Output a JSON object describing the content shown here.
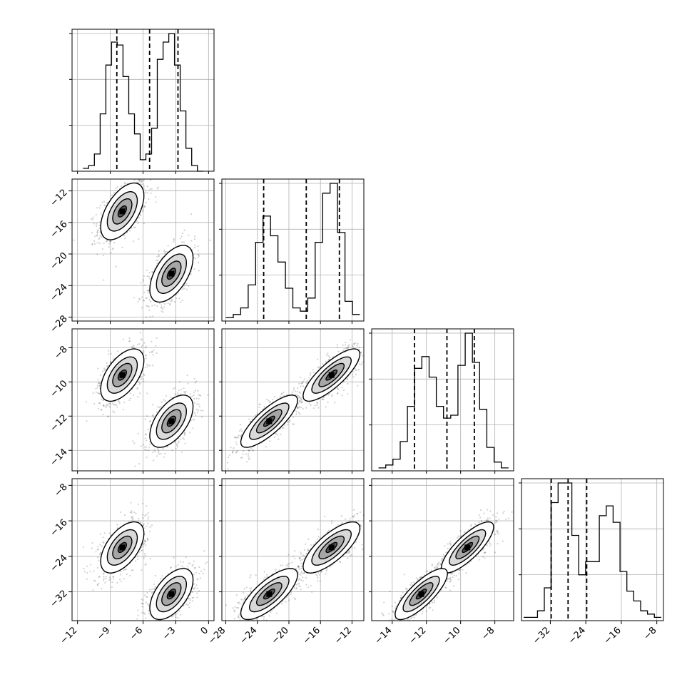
{
  "chart_data": {
    "type": "corner",
    "title": "",
    "params": [
      {
        "label": "",
        "range": [
          -12.5,
          0.5
        ],
        "ticks": [
          -12,
          -9,
          -6,
          -3,
          0
        ],
        "tick_labels": [
          "−12",
          "−9",
          "−6",
          "−3",
          "0"
        ]
      },
      {
        "label": "",
        "range": [
          -28.5,
          -10.5
        ],
        "ticks": [
          -28,
          -24,
          -20,
          -16,
          -12
        ],
        "tick_labels": [
          "−28",
          "−24",
          "−20",
          "−16",
          "−12"
        ]
      },
      {
        "label": "",
        "range": [
          -15.2,
          -6.9
        ],
        "ticks": [
          -14,
          -12,
          -10,
          -8
        ],
        "tick_labels": [
          "−14",
          "−12",
          "−10",
          "−8"
        ]
      },
      {
        "label": "",
        "range": [
          -38.5,
          -6.5
        ],
        "ticks": [
          -32,
          -24,
          -16,
          -8
        ],
        "tick_labels": [
          "−32",
          "−24",
          "−16",
          "−8"
        ]
      }
    ],
    "quantiles": [
      [
        -8.4,
        -5.4,
        -2.8
      ],
      [
        -23.2,
        -17.8,
        -13.6
      ],
      [
        -12.7,
        -10.8,
        -9.2
      ],
      [
        -31.8,
        -28.0,
        -23.8
      ]
    ],
    "histograms": [
      {
        "counts": [
          1,
          2,
          6,
          20,
          37,
          45,
          44,
          33,
          20,
          13,
          4,
          6,
          15,
          39,
          45,
          48,
          37,
          21,
          8,
          2,
          0
        ],
        "edges_range": [
          -11.5,
          -0.5
        ]
      },
      {
        "counts": [
          1,
          2,
          4,
          11,
          24,
          32,
          26,
          18,
          10,
          4,
          3,
          7,
          24,
          39,
          42,
          27,
          6,
          2
        ],
        "edges_range": [
          -28,
          -11
        ]
      },
      {
        "counts": [
          1,
          2,
          4,
          10,
          22,
          35,
          39,
          32,
          22,
          18,
          19,
          36,
          47,
          37,
          21,
          8,
          3,
          1
        ],
        "edges_range": [
          -14.8,
          -7.2
        ]
      },
      {
        "counts": [
          1,
          1,
          3,
          10,
          36,
          42,
          42,
          26,
          14,
          18,
          18,
          32,
          35,
          30,
          15,
          9,
          6,
          3,
          2,
          1
        ],
        "edges_range": [
          -38,
          -7
        ]
      }
    ],
    "components": [
      {
        "means": [
          -7.9,
          -14.6,
          -9.6,
          -22.0
        ]
      },
      {
        "means": [
          -3.4,
          -22.5,
          -12.3,
          -32.5
        ]
      }
    ],
    "grid": true,
    "contour_levels": 4
  }
}
